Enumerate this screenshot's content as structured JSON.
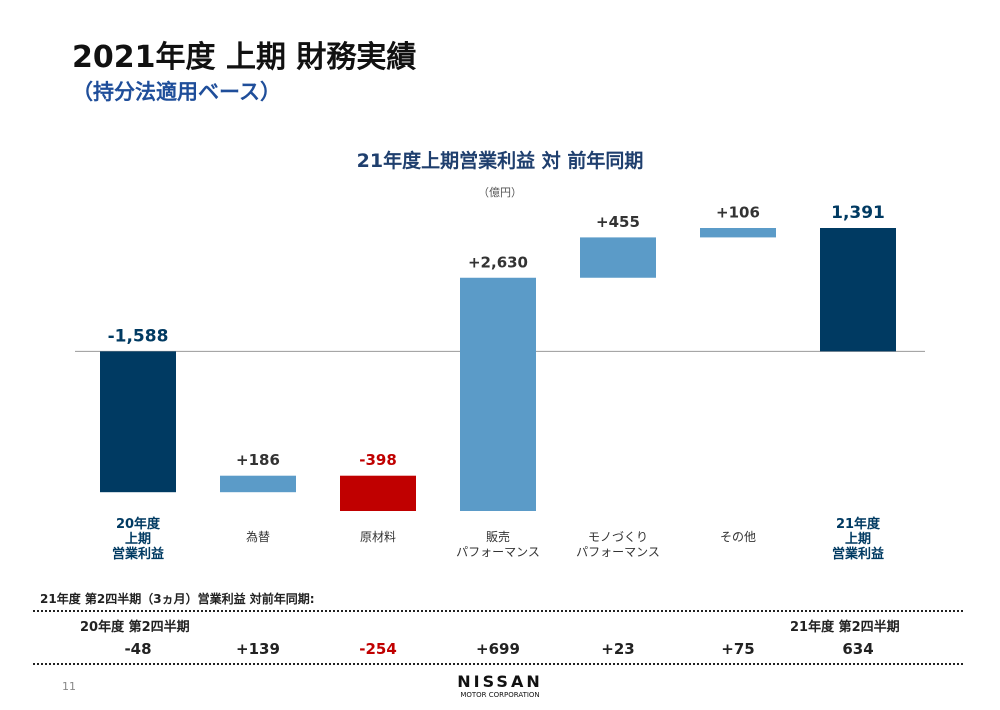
{
  "page": {
    "title": "2021年度 上期 財務実績",
    "subtitle": "（持分法適用ベース）",
    "page_number": "11",
    "logo": "NISSAN",
    "logo_sub": "MOTOR CORPORATION"
  },
  "chart_data": {
    "type": "waterfall",
    "title": "21年度上期営業利益 対 前年同期",
    "unit": "（億円）",
    "categories": [
      "20年度\n上期\n営業利益",
      "為替",
      "原材料",
      "販売\nパフォーマンス",
      "モノづくり\nパフォーマンス",
      "その他",
      "21年度\n上期\n営業利益"
    ],
    "values": [
      -1588,
      186,
      -398,
      2630,
      455,
      106,
      1391
    ],
    "value_labels": [
      "-1,588",
      "+186",
      "-398",
      "+2,630",
      "+455",
      "+106",
      "1,391"
    ],
    "measure": [
      "absolute",
      "relative",
      "relative",
      "relative",
      "relative",
      "relative",
      "total"
    ],
    "colors": [
      "#003a62",
      "#5b9bc8",
      "#c00000",
      "#5b9bc8",
      "#5b9bc8",
      "#5b9bc8",
      "#003a62"
    ]
  },
  "q2": {
    "title": "21年度 第2四半期（3ヵ月）営業利益 対前年同期:",
    "start_label": "20年度 第2四半期",
    "end_label": "21年度 第2四半期",
    "values": [
      "-48",
      "+139",
      "-254",
      "+699",
      "+23",
      "+75",
      "634"
    ]
  }
}
